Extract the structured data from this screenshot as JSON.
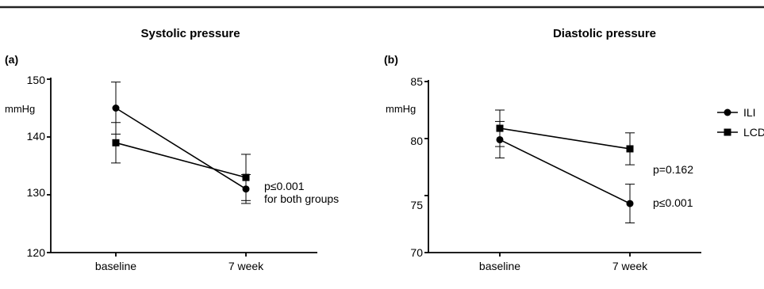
{
  "figure": {
    "legend": {
      "position": "right",
      "entries": [
        {
          "label": "ILI",
          "marker": "circle"
        },
        {
          "label": "LCD",
          "marker": "square"
        }
      ]
    },
    "colors": {
      "lines": "#000000",
      "markers": "#000000",
      "background": "#ffffff"
    }
  },
  "chart_data": [
    {
      "type": "line",
      "panel_label": "(a)",
      "title": "Systolic pressure",
      "ylabel": "mmHg",
      "xlabel": "",
      "categories": [
        "baseline",
        "7 week"
      ],
      "ylim": [
        120,
        150
      ],
      "yticks": [
        120,
        130,
        140,
        150
      ],
      "grid": false,
      "series": [
        {
          "name": "ILI",
          "marker": "circle",
          "values": [
            145,
            131
          ],
          "errors": [
            4.5,
            2.5
          ]
        },
        {
          "name": "LCD",
          "marker": "square",
          "values": [
            139,
            133
          ],
          "errors": [
            3.5,
            4
          ]
        }
      ],
      "annotations": [
        {
          "text": "p≤0.001",
          "near": "7 week"
        },
        {
          "text": "for both groups",
          "near": "7 week"
        }
      ]
    },
    {
      "type": "line",
      "panel_label": "(b)",
      "title": "Diastolic pressure",
      "ylabel": "mmHg",
      "xlabel": "",
      "categories": [
        "baseline",
        "7 week"
      ],
      "ylim": [
        70,
        85
      ],
      "yticks": [
        70,
        75,
        80,
        85
      ],
      "grid": false,
      "series": [
        {
          "name": "ILI",
          "marker": "circle",
          "values": [
            79.9,
            74.3
          ],
          "errors": [
            1.6,
            1.7
          ]
        },
        {
          "name": "LCD",
          "marker": "square",
          "values": [
            80.9,
            79.1
          ],
          "errors": [
            1.6,
            1.4
          ]
        }
      ],
      "annotations": [
        {
          "text": "p=0.162",
          "near": "LCD 7 week"
        },
        {
          "text": "p≤0.001",
          "near": "ILI 7 week"
        }
      ]
    }
  ]
}
